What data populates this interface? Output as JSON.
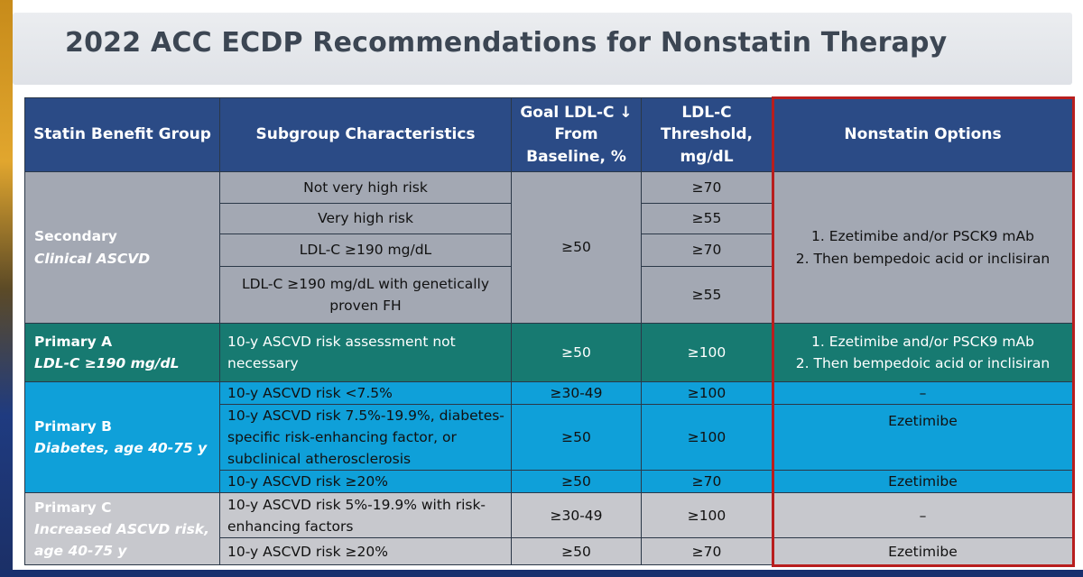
{
  "slide": {
    "title": "2022 ACC ECDP Recommendations for Nonstatin Therapy"
  },
  "table": {
    "headers": {
      "group": "Statin Benefit Group",
      "subgroup": "Subgroup Characteristics",
      "goal": "Goal LDL-C ↓ From Baseline, %",
      "threshold": "LDL-C Threshold, mg/dL",
      "options": "Nonstatin Options"
    },
    "secondary": {
      "group_name": "Secondary",
      "group_sub": "Clinical ASCVD",
      "goal": "≥50",
      "options_1": "1. Ezetimibe and/or PSCK9 mAb",
      "options_2": "2. Then bempedoic acid or inclisiran",
      "rows": [
        {
          "subgroup": "Not very high risk",
          "threshold": "≥70"
        },
        {
          "subgroup": "Very high risk",
          "threshold": "≥55"
        },
        {
          "subgroup": "LDL-C ≥190 mg/dL",
          "threshold": "≥70"
        },
        {
          "subgroup": "LDL-C ≥190 mg/dL with genetically proven FH",
          "threshold": "≥55"
        }
      ]
    },
    "primary_a": {
      "group_name": "Primary A",
      "group_sub": "LDL-C ≥190 mg/dL",
      "subgroup": "10-y ASCVD risk assessment not necessary",
      "goal": "≥50",
      "threshold": "≥100",
      "options_1": "1. Ezetimibe and/or PSCK9 mAb",
      "options_2": "2. Then bempedoic acid or inclisiran"
    },
    "primary_b": {
      "group_name": "Primary B",
      "group_sub": "Diabetes, age 40-75 y",
      "rows": [
        {
          "subgroup": "10-y ASCVD risk <7.5%",
          "goal": "≥30-49",
          "threshold": "≥100",
          "options": "–"
        },
        {
          "subgroup": "10-y ASCVD risk 7.5%-19.9%, diabetes-specific risk-enhancing factor, or subclinical atherosclerosis",
          "goal": "≥50",
          "threshold": "≥100",
          "options": "Ezetimibe"
        },
        {
          "subgroup": "10-y ASCVD risk ≥20%",
          "goal": "≥50",
          "threshold": "≥70",
          "options": "Ezetimibe"
        }
      ]
    },
    "primary_c": {
      "group_name": "Primary C",
      "group_sub": "Increased ASCVD risk, age 40-75 y",
      "rows": [
        {
          "subgroup": "10-y ASCVD risk 5%-19.9% with risk-enhancing factors",
          "goal": "≥30-49",
          "threshold": "≥100",
          "options": "–"
        },
        {
          "subgroup": "10-y ASCVD risk ≥20%",
          "goal": "≥50",
          "threshold": "≥70",
          "options": "Ezetimibe"
        }
      ]
    }
  }
}
